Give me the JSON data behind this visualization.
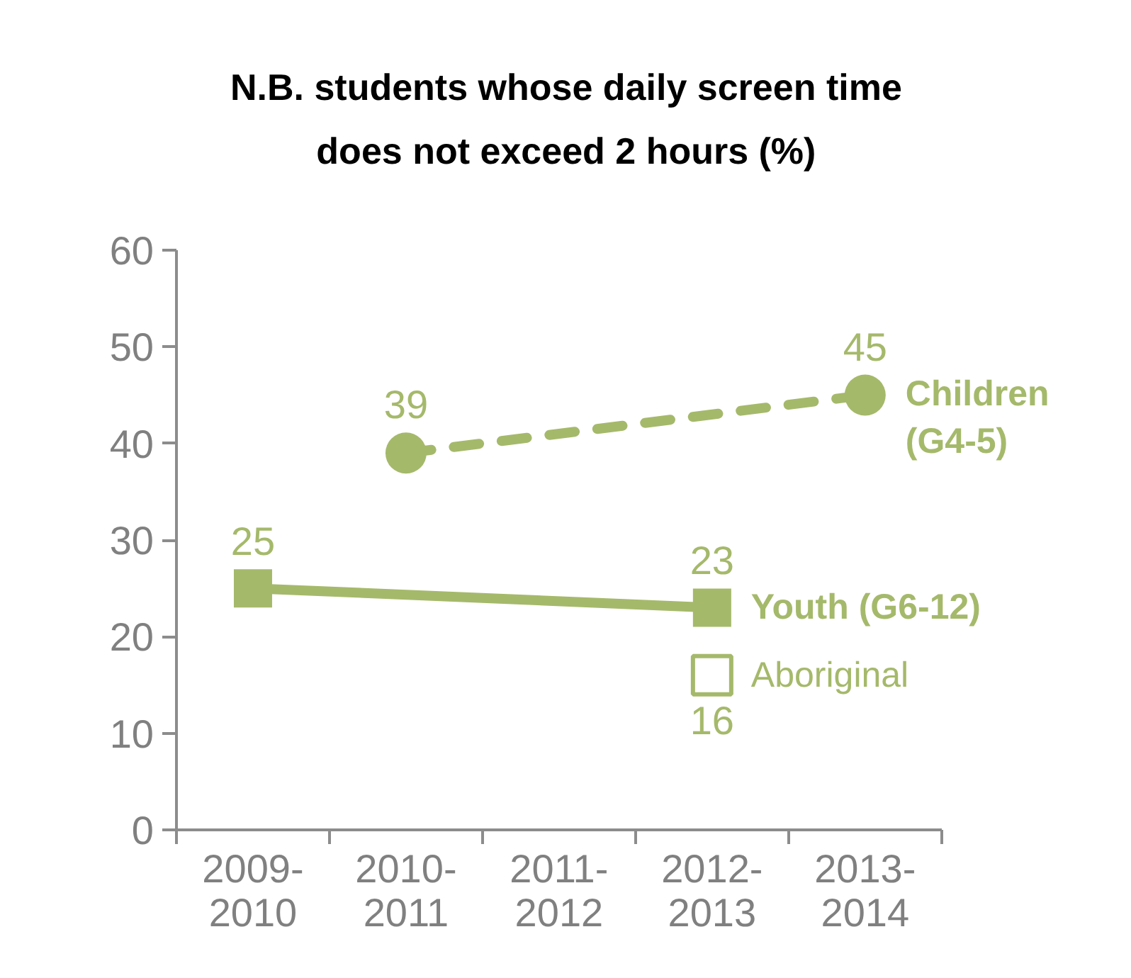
{
  "chart_data": {
    "type": "line",
    "title": "N.B. students whose daily screen time does not exceed 2 hours (%)",
    "categories": [
      "2009-2010",
      "2010-2011",
      "2011-2012",
      "2012-2013",
      "2013-2014"
    ],
    "series": [
      {
        "name": "Children (G4-5)",
        "color": "#a5b96b",
        "x": [
          "2010-2011",
          "2013-2014"
        ],
        "values": [
          39,
          45
        ],
        "marker": "circle",
        "line_style": "dashed"
      },
      {
        "name": "Youth (G6-12)",
        "color": "#a5b96b",
        "x": [
          "2009-2010",
          "2012-2013"
        ],
        "values": [
          25,
          23
        ],
        "marker": "square",
        "line_style": "solid"
      },
      {
        "name": "Aboriginal",
        "type": "scatter",
        "color": "#a5b96b",
        "x": [
          "2012-2013"
        ],
        "values": [
          16
        ],
        "marker": "square"
      }
    ],
    "ylim": [
      0,
      60
    ],
    "yticks": [
      0,
      10,
      20,
      30,
      40,
      50,
      60
    ],
    "data_labels": true
  }
}
